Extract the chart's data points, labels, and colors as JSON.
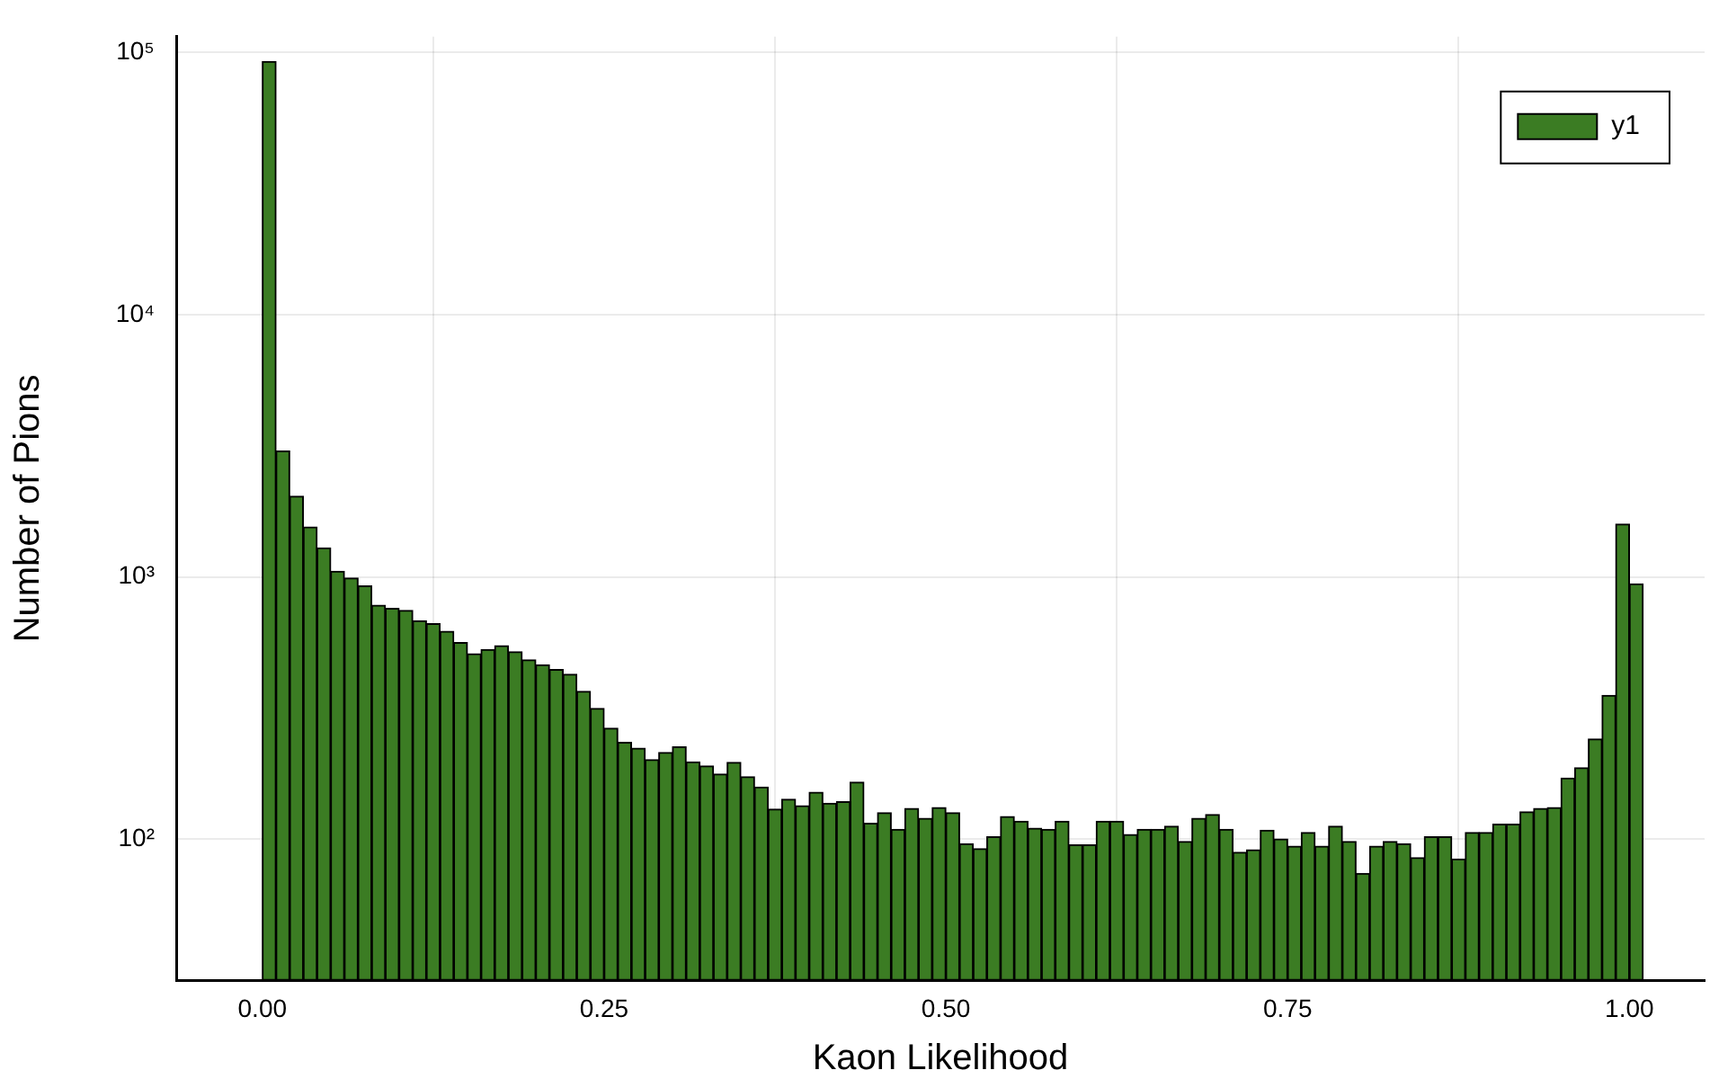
{
  "chart_data": {
    "type": "histogram",
    "xlabel": "Kaon Likelihood",
    "ylabel": "Number of Pions",
    "bins": [
      0,
      0.01,
      0.02,
      0.03,
      0.04,
      0.05,
      0.06,
      0.07,
      0.08,
      0.09,
      0.1,
      0.11,
      0.12,
      0.13,
      0.14,
      0.15,
      0.16,
      0.17,
      0.18,
      0.19,
      0.2,
      0.21,
      0.22,
      0.23,
      0.24,
      0.25,
      0.26,
      0.27,
      0.28,
      0.29,
      0.3,
      0.31,
      0.32,
      0.33,
      0.34,
      0.35,
      0.36,
      0.37,
      0.38,
      0.39,
      0.4,
      0.41,
      0.42,
      0.43,
      0.44,
      0.45,
      0.46,
      0.47,
      0.48,
      0.49,
      0.5,
      0.51,
      0.52,
      0.53,
      0.54,
      0.55,
      0.56,
      0.57,
      0.58,
      0.59,
      0.6,
      0.61,
      0.62,
      0.63,
      0.64,
      0.65,
      0.66,
      0.67,
      0.68,
      0.69,
      0.7,
      0.71,
      0.72,
      0.73,
      0.74,
      0.75,
      0.76,
      0.77,
      0.78,
      0.79,
      0.8,
      0.81,
      0.82,
      0.83,
      0.84,
      0.85,
      0.86,
      0.87,
      0.88,
      0.89,
      0.9,
      0.91,
      0.92,
      0.93,
      0.94,
      0.95,
      0.96,
      0.97,
      0.98,
      0.99,
      1,
      1.01
    ],
    "series": [
      {
        "name": "y1",
        "color": "#3b7c23",
        "values": [
          92500,
          3020,
          2030,
          1550,
          1290,
          1050,
          990,
          925,
          780,
          758,
          745,
          680,
          663,
          620,
          562,
          509,
          529,
          547,
          518,
          483,
          462,
          443,
          425,
          366,
          315,
          265,
          234,
          222,
          201,
          214,
          225,
          197,
          190,
          177,
          196,
          173,
          158,
          130,
          142,
          134,
          151,
          137,
          139,
          165,
          115,
          126,
          109,
          131,
          120,
          132,
          126,
          96,
          92,
          102,
          122,
          117,
          110,
          109,
          117,
          95,
          95,
          117,
          117,
          104,
          109,
          109,
          112,
          98,
          120,
          124,
          109,
          89,
          91,
          108,
          100,
          94,
          106,
          94,
          112,
          98,
          74,
          94,
          98,
          96,
          85,
          102,
          102,
          84,
          106,
          106,
          114,
          114,
          127,
          131,
          132,
          171,
          187,
          241,
          353,
          1590,
          941
        ]
      }
    ],
    "xlim": [
      -0.063,
      1.055
    ],
    "xticks": [
      {
        "value": 0,
        "label": "0.00"
      },
      {
        "value": 0.25,
        "label": "0.25"
      },
      {
        "value": 0.5,
        "label": "0.50"
      },
      {
        "value": 0.75,
        "label": "0.75"
      },
      {
        "value": 1,
        "label": "1.00"
      }
    ],
    "ylim": [
      29,
      115000
    ],
    "yticks": [
      {
        "value": 100,
        "label": "10²"
      },
      {
        "value": 1000,
        "label": "10³"
      },
      {
        "value": 10000,
        "label": "10⁴"
      },
      {
        "value": 100000,
        "label": "10⁵"
      }
    ],
    "log": true,
    "grid": true,
    "legend": "top right"
  }
}
